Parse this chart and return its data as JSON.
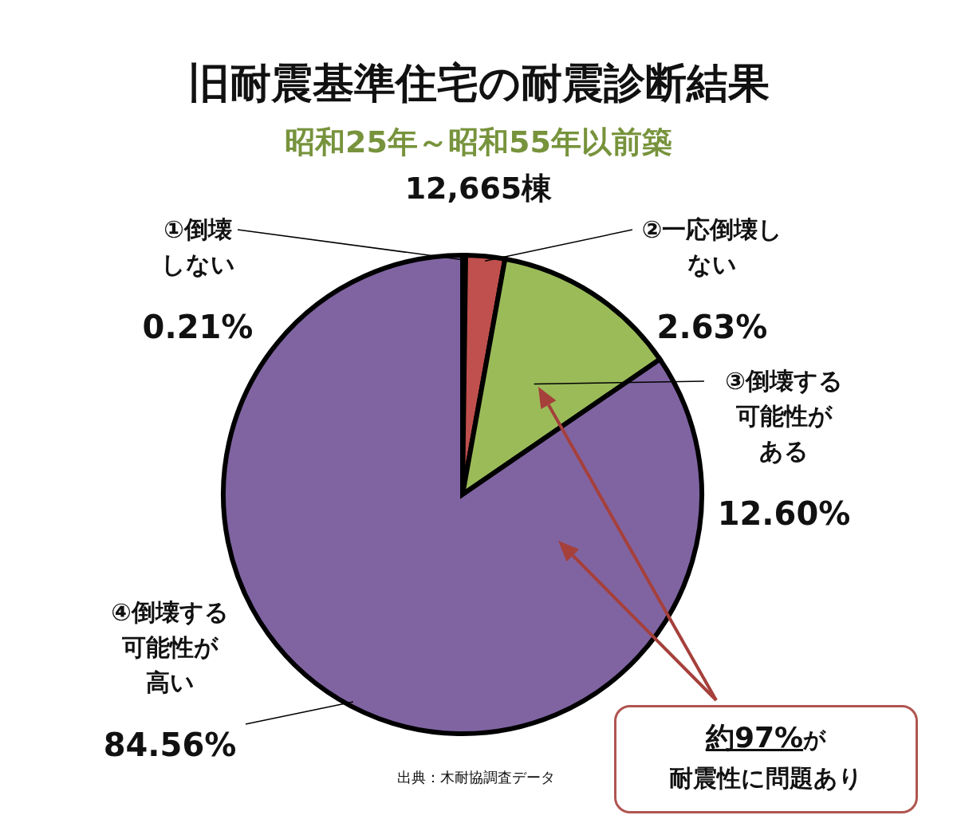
{
  "chart_data": {
    "type": "pie",
    "title": "旧耐震基準住宅の耐震診断結果",
    "subtitle": "昭和25年～昭和55年以前築",
    "categories": [
      "①倒壊しない",
      "②一応倒壊しない",
      "③倒壊する可能性がある",
      "④倒壊する可能性が高い"
    ],
    "values": [
      0.21,
      2.63,
      12.6,
      84.56
    ],
    "value_labels": [
      "0.21%",
      "2.63%",
      "12.60%",
      "84.56%"
    ],
    "colors": [
      "#4f81bd",
      "#c0504d",
      "#9bbb59",
      "#8064a2"
    ],
    "annotations": [
      "12,665棟",
      "約97%が耐震性に問題あり",
      "出典：木耐協調査データ"
    ],
    "legend": false
  }
}
